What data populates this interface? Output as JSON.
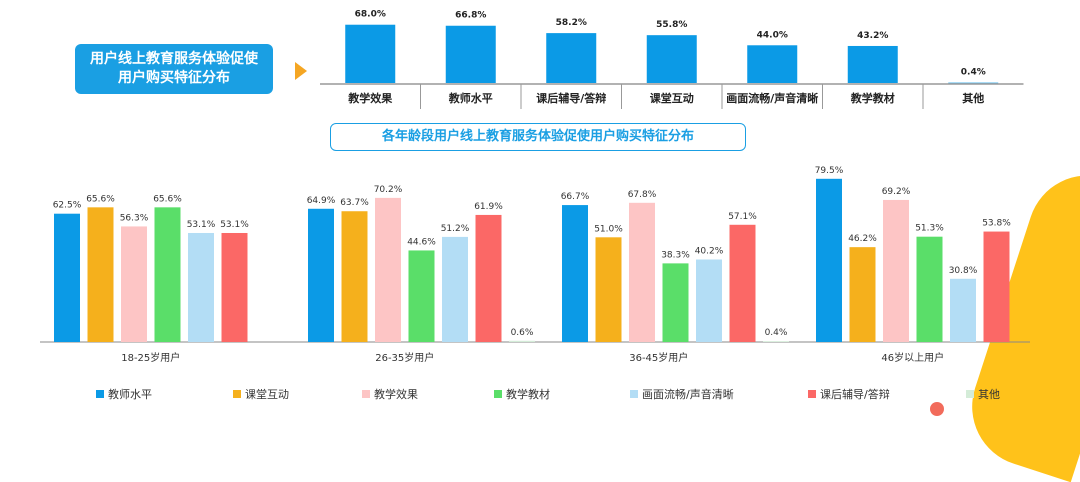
{
  "title_box": {
    "line1": "用户线上教育服务体验促使",
    "line2": "用户购买特征分布"
  },
  "subtitle": "各年龄段用户线上教育服务体验促使用户购买特征分布",
  "colors": {
    "blue": "#0b9ae6",
    "orange": "#f5b01c",
    "pink": "#fdc5c5",
    "green": "#5ade69",
    "light_blue": "#b3ddf5",
    "red": "#fb6866",
    "other": "#d4ecd8",
    "top_bar": "#0b9ae6"
  },
  "chart_data": [
    {
      "type": "bar",
      "title": "",
      "xlabel": "",
      "ylabel": "",
      "ylim": [
        0,
        70
      ],
      "categories": [
        "教学效果",
        "教师水平",
        "课后辅导/答辩",
        "课堂互动",
        "画面流畅/声音清晰",
        "教学教材",
        "其他"
      ],
      "values": [
        68.0,
        66.8,
        58.2,
        55.8,
        44.0,
        43.2,
        0.4
      ],
      "value_labels": [
        "68.0%",
        "66.8%",
        "58.2%",
        "55.8%",
        "44.0%",
        "43.2%",
        "0.4%"
      ]
    },
    {
      "type": "bar",
      "title": "",
      "xlabel": "",
      "ylabel": "",
      "ylim": [
        0,
        80
      ],
      "legend_position": "bottom",
      "categories": [
        "18-25岁用户",
        "26-35岁用户",
        "36-45岁用户",
        "46岁以上用户"
      ],
      "series": [
        {
          "name": "教师水平",
          "color_key": "blue",
          "values": [
            62.5,
            64.9,
            66.7,
            79.5
          ]
        },
        {
          "name": "课堂互动",
          "color_key": "orange",
          "values": [
            65.6,
            63.7,
            51.0,
            46.2
          ]
        },
        {
          "name": "教学效果",
          "color_key": "pink",
          "values": [
            56.3,
            70.2,
            67.8,
            69.2
          ]
        },
        {
          "name": "教学教材",
          "color_key": "green",
          "values": [
            65.6,
            44.6,
            38.3,
            51.3
          ]
        },
        {
          "name": "画面流畅/声音清晰",
          "color_key": "light_blue",
          "values": [
            53.1,
            51.2,
            40.2,
            30.8
          ]
        },
        {
          "name": "课后辅导/答辩",
          "color_key": "red",
          "values": [
            53.1,
            61.9,
            57.1,
            53.8
          ]
        },
        {
          "name": "其他",
          "color_key": "other",
          "values": [
            null,
            0.6,
            0.4,
            null
          ]
        }
      ],
      "value_labels": [
        [
          "62.5%",
          "65.6%",
          "56.3%",
          "65.6%",
          "53.1%",
          "53.1%",
          ""
        ],
        [
          "64.9%",
          "63.7%",
          "70.2%",
          "44.6%",
          "51.2%",
          "61.9%",
          "0.6%"
        ],
        [
          "66.7%",
          "51.0%",
          "67.8%",
          "38.3%",
          "40.2%",
          "57.1%",
          "0.4%"
        ],
        [
          "79.5%",
          "46.2%",
          "69.2%",
          "51.3%",
          "30.8%",
          "53.8%",
          ""
        ]
      ]
    }
  ]
}
